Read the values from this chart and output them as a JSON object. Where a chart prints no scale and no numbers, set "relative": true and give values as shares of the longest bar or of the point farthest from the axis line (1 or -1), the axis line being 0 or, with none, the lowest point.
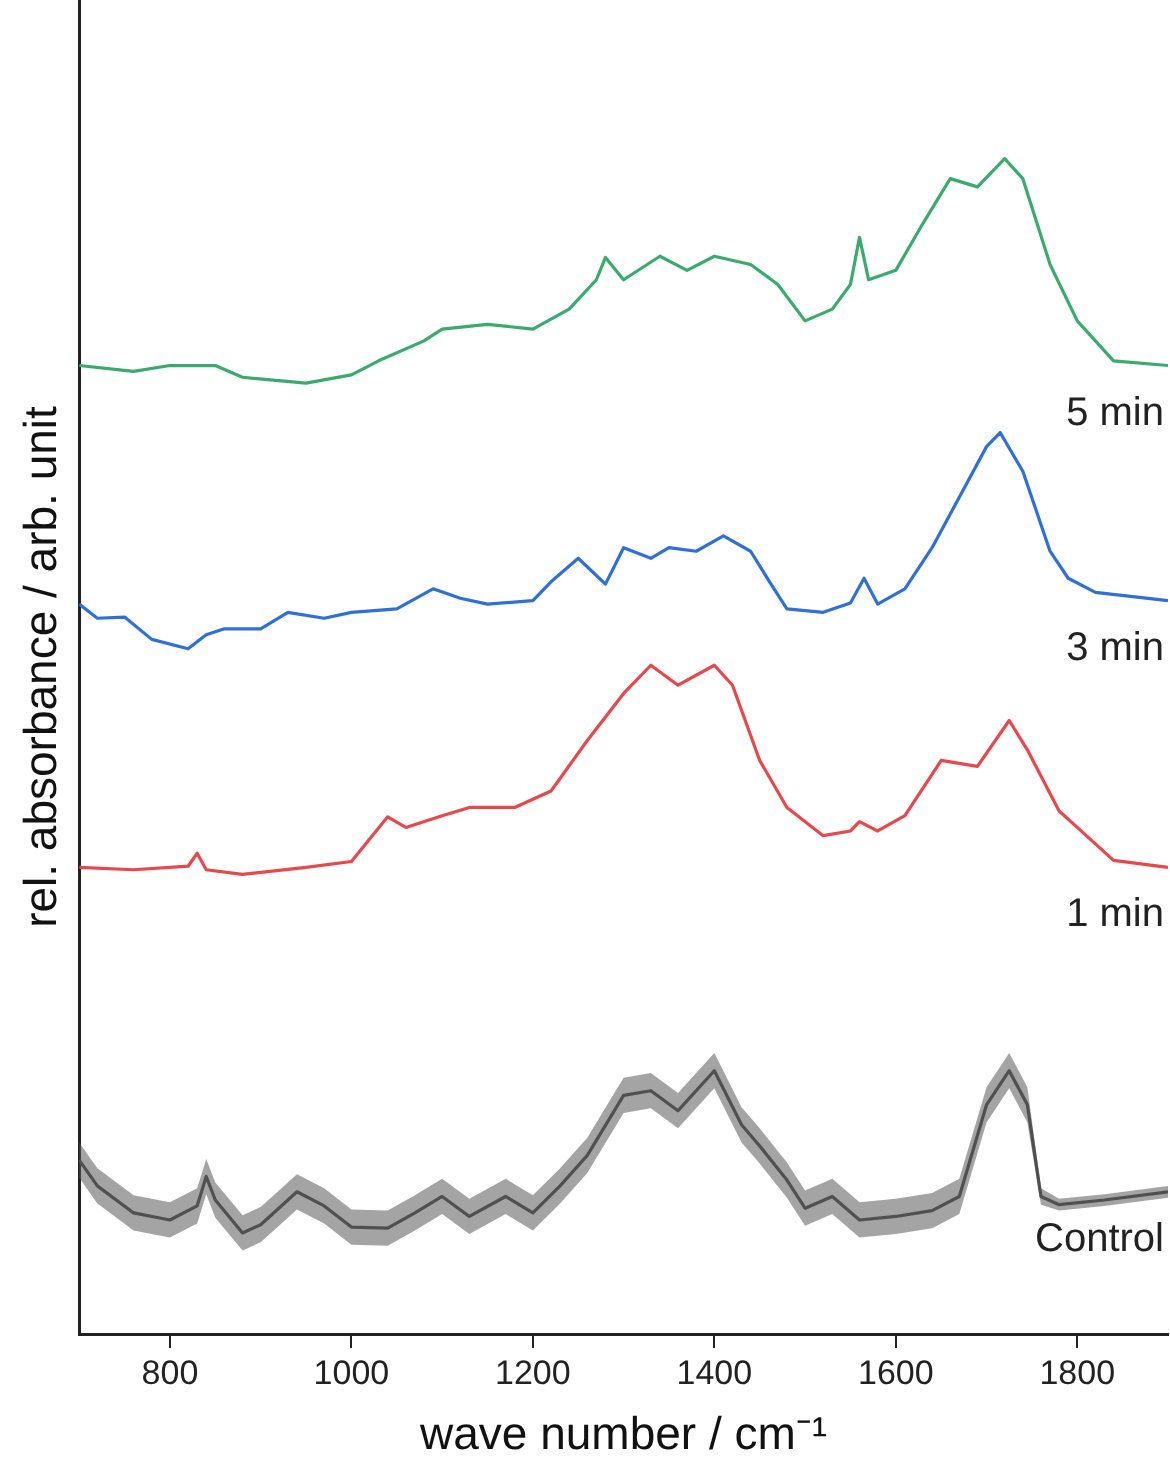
{
  "chart_data": {
    "type": "line",
    "relative": true,
    "xlabel": "wave number / cm⁻¹",
    "ylabel": "rel. absorbance / arb. unit",
    "xlim": [
      700,
      1900
    ],
    "xticks": [
      800,
      1000,
      1200,
      1400,
      1600,
      1800
    ],
    "grid": false,
    "legend": false,
    "marker": "none",
    "line_style": "solid",
    "series": [
      {
        "name": "5 min",
        "color": "#3aaa6e",
        "x": [
          700,
          760,
          800,
          850,
          880,
          950,
          1000,
          1030,
          1080,
          1100,
          1150,
          1200,
          1240,
          1270,
          1280,
          1300,
          1340,
          1370,
          1400,
          1440,
          1470,
          1500,
          1530,
          1550,
          1560,
          1570,
          1600,
          1630,
          1660,
          1690,
          1720,
          1740,
          1770,
          1800,
          1840,
          1900
        ],
        "values": [
          0.824,
          0.819,
          0.824,
          0.824,
          0.814,
          0.809,
          0.816,
          0.828,
          0.845,
          0.855,
          0.859,
          0.855,
          0.872,
          0.897,
          0.916,
          0.897,
          0.917,
          0.905,
          0.917,
          0.91,
          0.893,
          0.862,
          0.872,
          0.893,
          0.933,
          0.897,
          0.905,
          0.945,
          0.983,
          0.976,
          1.0,
          0.983,
          0.91,
          0.862,
          0.828,
          0.824
        ]
      },
      {
        "name": "3 min",
        "color": "#2f6fd6",
        "x": [
          700,
          720,
          750,
          780,
          820,
          840,
          860,
          900,
          930,
          970,
          1000,
          1050,
          1090,
          1120,
          1150,
          1200,
          1220,
          1250,
          1280,
          1300,
          1330,
          1350,
          1380,
          1410,
          1440,
          1460,
          1480,
          1520,
          1550,
          1565,
          1580,
          1610,
          1640,
          1670,
          1700,
          1715,
          1740,
          1770,
          1790,
          1820,
          1900
        ],
        "values": [
          0.621,
          0.609,
          0.61,
          0.591,
          0.583,
          0.595,
          0.6,
          0.6,
          0.614,
          0.609,
          0.614,
          0.617,
          0.634,
          0.626,
          0.621,
          0.624,
          0.64,
          0.66,
          0.638,
          0.669,
          0.66,
          0.669,
          0.666,
          0.679,
          0.666,
          0.641,
          0.617,
          0.614,
          0.622,
          0.643,
          0.621,
          0.634,
          0.669,
          0.712,
          0.755,
          0.767,
          0.734,
          0.666,
          0.643,
          0.631,
          0.624
        ]
      },
      {
        "name": "1 min",
        "color": "#e8474c",
        "x": [
          700,
          760,
          820,
          830,
          840,
          880,
          950,
          1000,
          1040,
          1060,
          1100,
          1130,
          1180,
          1220,
          1260,
          1300,
          1330,
          1360,
          1400,
          1420,
          1450,
          1480,
          1520,
          1550,
          1560,
          1580,
          1610,
          1650,
          1690,
          1725,
          1745,
          1780,
          1800,
          1840,
          1900
        ],
        "values": [
          0.397,
          0.395,
          0.398,
          0.409,
          0.395,
          0.391,
          0.397,
          0.402,
          0.44,
          0.431,
          0.441,
          0.448,
          0.448,
          0.462,
          0.505,
          0.545,
          0.569,
          0.552,
          0.569,
          0.552,
          0.488,
          0.448,
          0.424,
          0.428,
          0.436,
          0.428,
          0.441,
          0.488,
          0.483,
          0.522,
          0.497,
          0.445,
          0.431,
          0.403,
          0.397
        ]
      },
      {
        "name": "Control",
        "color": "#505050",
        "x": [
          700,
          720,
          760,
          800,
          830,
          840,
          850,
          880,
          900,
          940,
          970,
          1000,
          1040,
          1070,
          1100,
          1130,
          1170,
          1200,
          1230,
          1260,
          1300,
          1330,
          1360,
          1400,
          1430,
          1450,
          1480,
          1500,
          1530,
          1560,
          1600,
          1640,
          1670,
          1700,
          1725,
          1745,
          1760,
          1780,
          1830,
          1900
        ],
        "values": [
          0.148,
          0.126,
          0.103,
          0.097,
          0.109,
          0.134,
          0.114,
          0.086,
          0.093,
          0.121,
          0.109,
          0.091,
          0.09,
          0.103,
          0.117,
          0.1,
          0.117,
          0.103,
          0.126,
          0.152,
          0.203,
          0.207,
          0.19,
          0.224,
          0.178,
          0.16,
          0.131,
          0.107,
          0.117,
          0.097,
          0.1,
          0.105,
          0.117,
          0.195,
          0.224,
          0.195,
          0.117,
          0.11,
          0.114,
          0.121
        ],
        "lower": [
          0.133,
          0.111,
          0.088,
          0.082,
          0.094,
          0.119,
          0.099,
          0.071,
          0.078,
          0.106,
          0.094,
          0.076,
          0.075,
          0.088,
          0.102,
          0.085,
          0.102,
          0.088,
          0.111,
          0.137,
          0.188,
          0.192,
          0.175,
          0.209,
          0.163,
          0.145,
          0.116,
          0.092,
          0.102,
          0.082,
          0.085,
          0.09,
          0.102,
          0.18,
          0.209,
          0.18,
          0.11,
          0.105,
          0.109,
          0.116
        ],
        "upper": [
          0.163,
          0.141,
          0.118,
          0.112,
          0.124,
          0.149,
          0.129,
          0.101,
          0.108,
          0.136,
          0.124,
          0.106,
          0.105,
          0.118,
          0.132,
          0.115,
          0.132,
          0.118,
          0.141,
          0.167,
          0.218,
          0.222,
          0.205,
          0.239,
          0.193,
          0.175,
          0.146,
          0.122,
          0.132,
          0.112,
          0.115,
          0.12,
          0.132,
          0.21,
          0.239,
          0.21,
          0.124,
          0.115,
          0.119,
          0.126
        ]
      }
    ]
  }
}
